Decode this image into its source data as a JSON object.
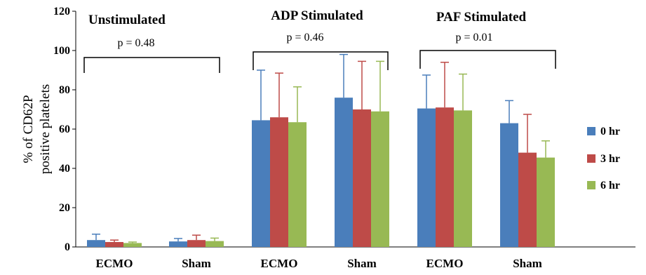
{
  "chart_data": {
    "type": "bar",
    "title": "",
    "xlabel": "",
    "ylabel": "% of CD62P positive platelets",
    "ylim": [
      0,
      120
    ],
    "yticks": [
      0,
      20,
      40,
      60,
      80,
      100,
      120
    ],
    "grid": false,
    "legend_position": "right",
    "categories": [
      "ECMO",
      "Sham",
      "ECMO",
      "Sham",
      "ECMO",
      "Sham"
    ],
    "groups": [
      {
        "title": "Unstimulated",
        "p_value": "p = 0.48",
        "categories": [
          0,
          1
        ]
      },
      {
        "title": "ADP Stimulated",
        "p_value": "p = 0.46",
        "categories": [
          2,
          3
        ]
      },
      {
        "title": "PAF Stimulated",
        "p_value": "p = 0.01",
        "categories": [
          4,
          5
        ]
      }
    ],
    "series": [
      {
        "name": "0 hr",
        "color": "#4a7ebb",
        "values": [
          3.5,
          2.8,
          64.5,
          76.0,
          70.5,
          63.0
        ],
        "errors": [
          3.0,
          1.5,
          25.5,
          22.0,
          17.0,
          11.5
        ]
      },
      {
        "name": "3 hr",
        "color": "#be4b48",
        "values": [
          2.5,
          3.5,
          66.0,
          70.0,
          71.0,
          48.0
        ],
        "errors": [
          1.0,
          2.5,
          22.5,
          24.5,
          23.0,
          19.5
        ]
      },
      {
        "name": "6 hr",
        "color": "#98b954",
        "values": [
          2.0,
          3.0,
          63.5,
          69.0,
          69.5,
          45.5
        ],
        "errors": [
          0.5,
          1.5,
          18.0,
          25.5,
          18.5,
          8.5
        ]
      }
    ]
  }
}
